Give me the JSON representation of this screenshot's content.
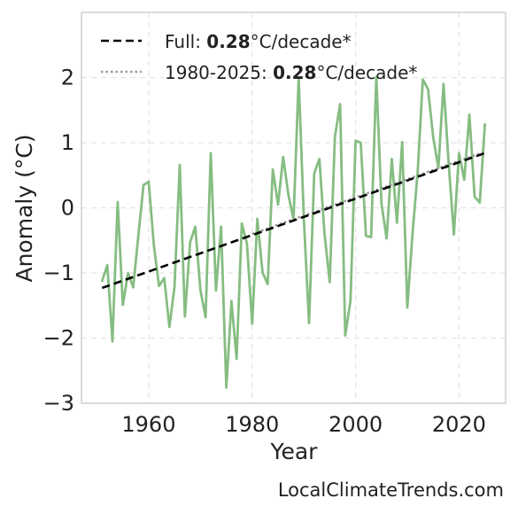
{
  "colors": {
    "series": "#86bd82",
    "trend_full": "#000000",
    "trend_recent": "#9a9a9a",
    "axes_frame": "#cccccc",
    "grid": "#e3e3e3"
  },
  "chart_data": {
    "type": "line",
    "title": "",
    "xlabel": "Year",
    "ylabel": "Anomaly (°C)",
    "xlim": [
      1947,
      2029
    ],
    "ylim": [
      -3,
      3
    ],
    "xticks": [
      1960,
      1980,
      2000,
      2020
    ],
    "yticks": [
      -3,
      -2,
      -1,
      0,
      1,
      2
    ],
    "grid": true,
    "legend_position": "top-left",
    "series": [
      {
        "x": [
          1951,
          1952,
          1953,
          1954,
          1955,
          1956,
          1957,
          1958,
          1959,
          1960,
          1961,
          1962,
          1963,
          1964,
          1965,
          1966,
          1967,
          1968,
          1969,
          1970,
          1971,
          1972,
          1973,
          1974,
          1975,
          1976,
          1977,
          1978,
          1979,
          1980,
          1981,
          1982,
          1983,
          1984,
          1985,
          1986,
          1987,
          1988,
          1989,
          1990,
          1991,
          1992,
          1993,
          1994,
          1995,
          1996,
          1997,
          1998,
          1999,
          2000,
          2001,
          2002,
          2003,
          2004,
          2005,
          2006,
          2007,
          2008,
          2009,
          2010,
          2011,
          2012,
          2013,
          2014,
          2015,
          2016,
          2017,
          2018,
          2019,
          2020,
          2021,
          2022,
          2023,
          2024,
          2025
        ],
        "values": [
          -1.12,
          -0.88,
          -2.05,
          0.09,
          -1.49,
          -1.0,
          -1.22,
          -0.42,
          0.35,
          0.4,
          -0.58,
          -1.2,
          -1.08,
          -1.83,
          -1.21,
          0.66,
          -1.67,
          -0.53,
          -0.29,
          -1.27,
          -1.68,
          0.84,
          -1.27,
          -0.29,
          -2.76,
          -1.43,
          -2.32,
          -0.24,
          -0.55,
          -1.78,
          -0.17,
          -0.99,
          -1.17,
          0.59,
          0.05,
          0.78,
          0.2,
          -0.18,
          1.99,
          -0.18,
          -1.77,
          0.53,
          0.75,
          -0.4,
          -1.14,
          1.09,
          1.59,
          -1.96,
          -1.43,
          1.03,
          1.0,
          -0.43,
          -0.45,
          2.01,
          0.07,
          -0.47,
          0.75,
          -0.23,
          1.01,
          -1.53,
          -0.39,
          0.55,
          1.97,
          1.82,
          1.09,
          0.61,
          1.9,
          0.68,
          -0.41,
          0.84,
          0.43,
          1.43,
          0.17,
          0.08,
          1.28
        ]
      }
    ],
    "trend_lines": [
      {
        "label_prefix": "Full: ",
        "label_value": "0.28",
        "label_suffix": "°C/decade*",
        "x": [
          1951,
          2025
        ],
        "values": [
          -1.23,
          0.84
        ],
        "style": "dashed"
      },
      {
        "label_prefix": "1980-2025: ",
        "label_value": "0.28",
        "label_suffix": "°C/decade*",
        "x": [
          1980,
          2025
        ],
        "values": [
          -0.4,
          0.86
        ],
        "style": "dotted"
      }
    ]
  },
  "watermark": "LocalClimateTrends.com"
}
